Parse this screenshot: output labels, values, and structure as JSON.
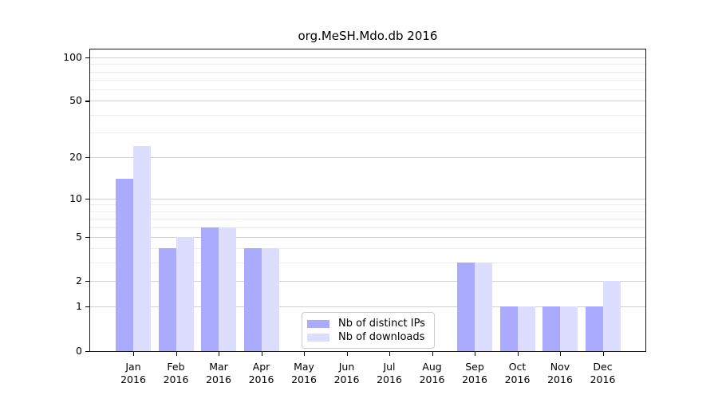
{
  "title": "org.MeSH.Mdo.db 2016",
  "colors": {
    "distinct_ips_bar": "#aaaaff",
    "downloads_bar": "#ddddff",
    "grid_major": "#d0d0d0",
    "grid_minor": "#ececec",
    "spine": "#1a1a1a",
    "text": "#000000",
    "legend_border": "#cccccc"
  },
  "legend": {
    "items": [
      {
        "label": "Nb of distinct IPs",
        "color_key": "distinct_ips_bar"
      },
      {
        "label": "Nb of downloads",
        "color_key": "downloads_bar"
      }
    ]
  },
  "chart_data": {
    "type": "bar",
    "title": "org.MeSH.Mdo.db 2016",
    "categories": [
      "Jan",
      "Feb",
      "Mar",
      "Apr",
      "May",
      "Jun",
      "Jul",
      "Aug",
      "Sep",
      "Oct",
      "Nov",
      "Dec"
    ],
    "category_year": "2016",
    "series": [
      {
        "name": "Nb of distinct IPs",
        "color": "#aaaaff",
        "values": [
          14,
          4,
          6,
          4,
          0,
          0,
          0,
          0,
          3,
          1,
          1,
          1
        ]
      },
      {
        "name": "Nb of downloads",
        "color": "#ddddff",
        "values": [
          24,
          5,
          6,
          4,
          0,
          0,
          0,
          0,
          3,
          1,
          1,
          2
        ]
      }
    ],
    "xlabel": "",
    "ylabel": "",
    "yscale": "log1p",
    "ylim": [
      0,
      100
    ],
    "yticks": [
      0,
      1,
      2,
      5,
      10,
      20,
      50,
      100
    ],
    "yticks_minor": [
      3,
      4,
      6,
      7,
      8,
      9,
      30,
      40,
      60,
      70,
      80,
      90
    ],
    "grid": true,
    "legend_position": "lower center-left inside plot"
  }
}
